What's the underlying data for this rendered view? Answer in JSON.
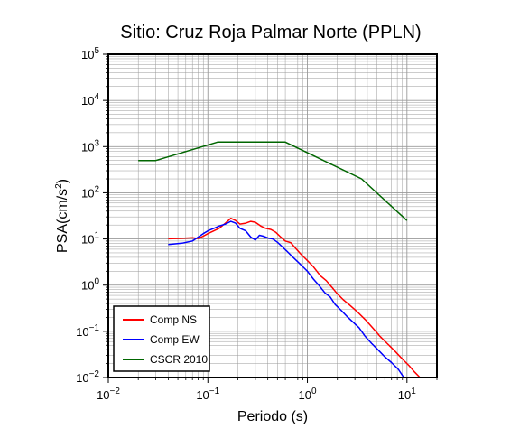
{
  "chart_data": {
    "type": "line",
    "title": "Sitio: Cruz Roja Palmar Norte (PPLN)",
    "xlabel": "Periodo (s)",
    "ylabel_base": "PSA(cm/s",
    "ylabel_sup": "2",
    "ylabel_tail": ")",
    "x_scale": "log",
    "y_scale": "log",
    "xlim": [
      0.01,
      20
    ],
    "ylim": [
      0.01,
      100000
    ],
    "grid": true,
    "legend_position": "bottom-left",
    "x_ticks": [
      {
        "base": "10",
        "exp": "−2"
      },
      {
        "base": "10",
        "exp": "−1"
      },
      {
        "base": "10",
        "exp": "0"
      },
      {
        "base": "10",
        "exp": "1"
      }
    ],
    "y_ticks": [
      {
        "base": "10",
        "exp": "−2"
      },
      {
        "base": "10",
        "exp": "−1"
      },
      {
        "base": "10",
        "exp": "0"
      },
      {
        "base": "10",
        "exp": "1"
      },
      {
        "base": "10",
        "exp": "2"
      },
      {
        "base": "10",
        "exp": "3"
      },
      {
        "base": "10",
        "exp": "4"
      },
      {
        "base": "10",
        "exp": "5"
      }
    ],
    "series": [
      {
        "name": "Comp NS",
        "color": "#ff0000",
        "points": [
          [
            0.04,
            10.1
          ],
          [
            0.055,
            10.3
          ],
          [
            0.07,
            10.6
          ],
          [
            0.08,
            10.2
          ],
          [
            0.09,
            11.5
          ],
          [
            0.1,
            13
          ],
          [
            0.115,
            15
          ],
          [
            0.13,
            17
          ],
          [
            0.15,
            22
          ],
          [
            0.17,
            28
          ],
          [
            0.19,
            25
          ],
          [
            0.21,
            21
          ],
          [
            0.24,
            22
          ],
          [
            0.27,
            24
          ],
          [
            0.3,
            23
          ],
          [
            0.34,
            19
          ],
          [
            0.38,
            17
          ],
          [
            0.43,
            16
          ],
          [
            0.48,
            14
          ],
          [
            0.54,
            11
          ],
          [
            0.6,
            9
          ],
          [
            0.68,
            8.3
          ],
          [
            0.75,
            6.5
          ],
          [
            0.85,
            4.8
          ],
          [
            1,
            3.4
          ],
          [
            1.15,
            2.5
          ],
          [
            1.35,
            1.6
          ],
          [
            1.55,
            1.25
          ],
          [
            1.75,
            0.92
          ],
          [
            2,
            0.65
          ],
          [
            2.3,
            0.48
          ],
          [
            2.7,
            0.36
          ],
          [
            3.2,
            0.26
          ],
          [
            3.8,
            0.18
          ],
          [
            4.5,
            0.12
          ],
          [
            5.3,
            0.08
          ],
          [
            6.3,
            0.055
          ],
          [
            7.5,
            0.038
          ],
          [
            9,
            0.025
          ],
          [
            10.5,
            0.018
          ],
          [
            12,
            0.013
          ],
          [
            13.5,
            0.01
          ]
        ]
      },
      {
        "name": "Comp EW",
        "color": "#0000ff",
        "points": [
          [
            0.04,
            7.6
          ],
          [
            0.055,
            8.1
          ],
          [
            0.07,
            9
          ],
          [
            0.08,
            11
          ],
          [
            0.09,
            13
          ],
          [
            0.1,
            15
          ],
          [
            0.115,
            17
          ],
          [
            0.13,
            19
          ],
          [
            0.15,
            21
          ],
          [
            0.17,
            24
          ],
          [
            0.19,
            22
          ],
          [
            0.21,
            17
          ],
          [
            0.24,
            15
          ],
          [
            0.27,
            11
          ],
          [
            0.3,
            9.5
          ],
          [
            0.33,
            12
          ],
          [
            0.36,
            11.5
          ],
          [
            0.4,
            10.5
          ],
          [
            0.45,
            10
          ],
          [
            0.5,
            8.5
          ],
          [
            0.55,
            7
          ],
          [
            0.62,
            5.5
          ],
          [
            0.7,
            4.2
          ],
          [
            0.8,
            3.2
          ],
          [
            0.9,
            2.5
          ],
          [
            1,
            2
          ],
          [
            1.15,
            1.35
          ],
          [
            1.3,
            1
          ],
          [
            1.5,
            0.68
          ],
          [
            1.7,
            0.55
          ],
          [
            1.9,
            0.38
          ],
          [
            2.2,
            0.28
          ],
          [
            2.5,
            0.21
          ],
          [
            2.9,
            0.155
          ],
          [
            3.3,
            0.12
          ],
          [
            3.8,
            0.078
          ],
          [
            4.4,
            0.055
          ],
          [
            5.1,
            0.04
          ],
          [
            6,
            0.028
          ],
          [
            7,
            0.021
          ],
          [
            8.2,
            0.015
          ],
          [
            9.3,
            0.01
          ]
        ]
      },
      {
        "name": "CSCR 2010",
        "color": "#006600",
        "points": [
          [
            0.02,
            500
          ],
          [
            0.03,
            500
          ],
          [
            0.125,
            1250
          ],
          [
            0.6,
            1250
          ],
          [
            3.5,
            200
          ],
          [
            10,
            25
          ]
        ]
      }
    ]
  }
}
